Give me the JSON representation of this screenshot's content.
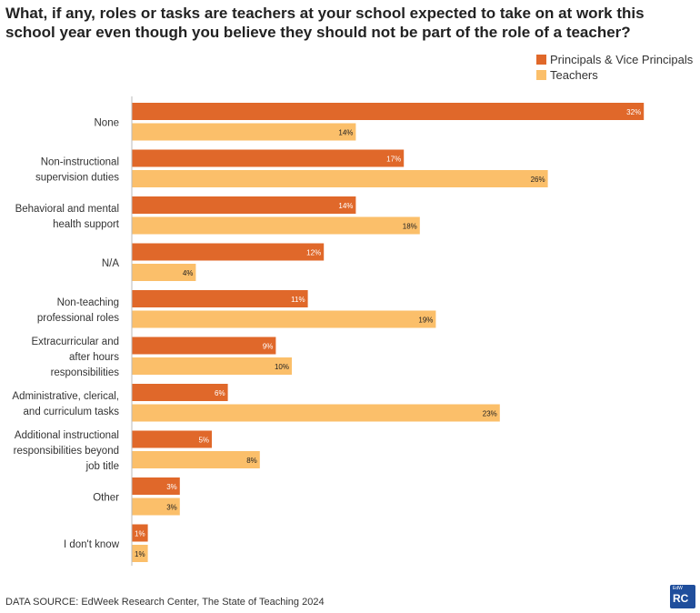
{
  "title": "What, if any, roles or tasks are teachers at your school expected to take on at work this school year even though you believe they should not be part of the role of a teacher?",
  "source": "DATA SOURCE: EdWeek Research Center, The State of Teaching 2024",
  "logo": {
    "small": "EdW",
    "big": "RC"
  },
  "colors": {
    "principals": "#e0682a",
    "teachers": "#fbbf6a",
    "axis": "#bbbbbb"
  },
  "chart_data": {
    "type": "bar",
    "orientation": "horizontal",
    "title": "What, if any, roles or tasks are teachers at your school expected to take on at work this school year even though you believe they should not be part of the role of a teacher?",
    "legend_position": "top-right",
    "value_suffix": "%",
    "xlim": [
      0,
      32
    ],
    "categories": [
      "None",
      "Non-instructional supervision duties",
      "Behavioral and mental health support",
      "N/A",
      "Non-teaching professional roles",
      "Extracurricular and after hours responsibilities",
      "Administrative, clerical, and curriculum tasks",
      "Additional instructional responsibilities beyond job title",
      "Other",
      "I don't know"
    ],
    "category_lines": [
      [
        "None"
      ],
      [
        "Non-instructional",
        "supervision duties"
      ],
      [
        "Behavioral and mental",
        "health support"
      ],
      [
        "N/A"
      ],
      [
        "Non-teaching",
        "professional roles"
      ],
      [
        "Extracurricular and",
        "after hours",
        "responsibilities"
      ],
      [
        "Administrative, clerical,",
        "and curriculum tasks"
      ],
      [
        "Additional instructional",
        "responsibilities beyond",
        "job title"
      ],
      [
        "Other"
      ],
      [
        "I don't know"
      ]
    ],
    "series": [
      {
        "name": "Principals & Vice Principals",
        "values": [
          32,
          17,
          14,
          12,
          11,
          9,
          6,
          5,
          3,
          1
        ]
      },
      {
        "name": "Teachers",
        "values": [
          14,
          26,
          18,
          4,
          19,
          10,
          23,
          8,
          3,
          1
        ]
      }
    ]
  }
}
